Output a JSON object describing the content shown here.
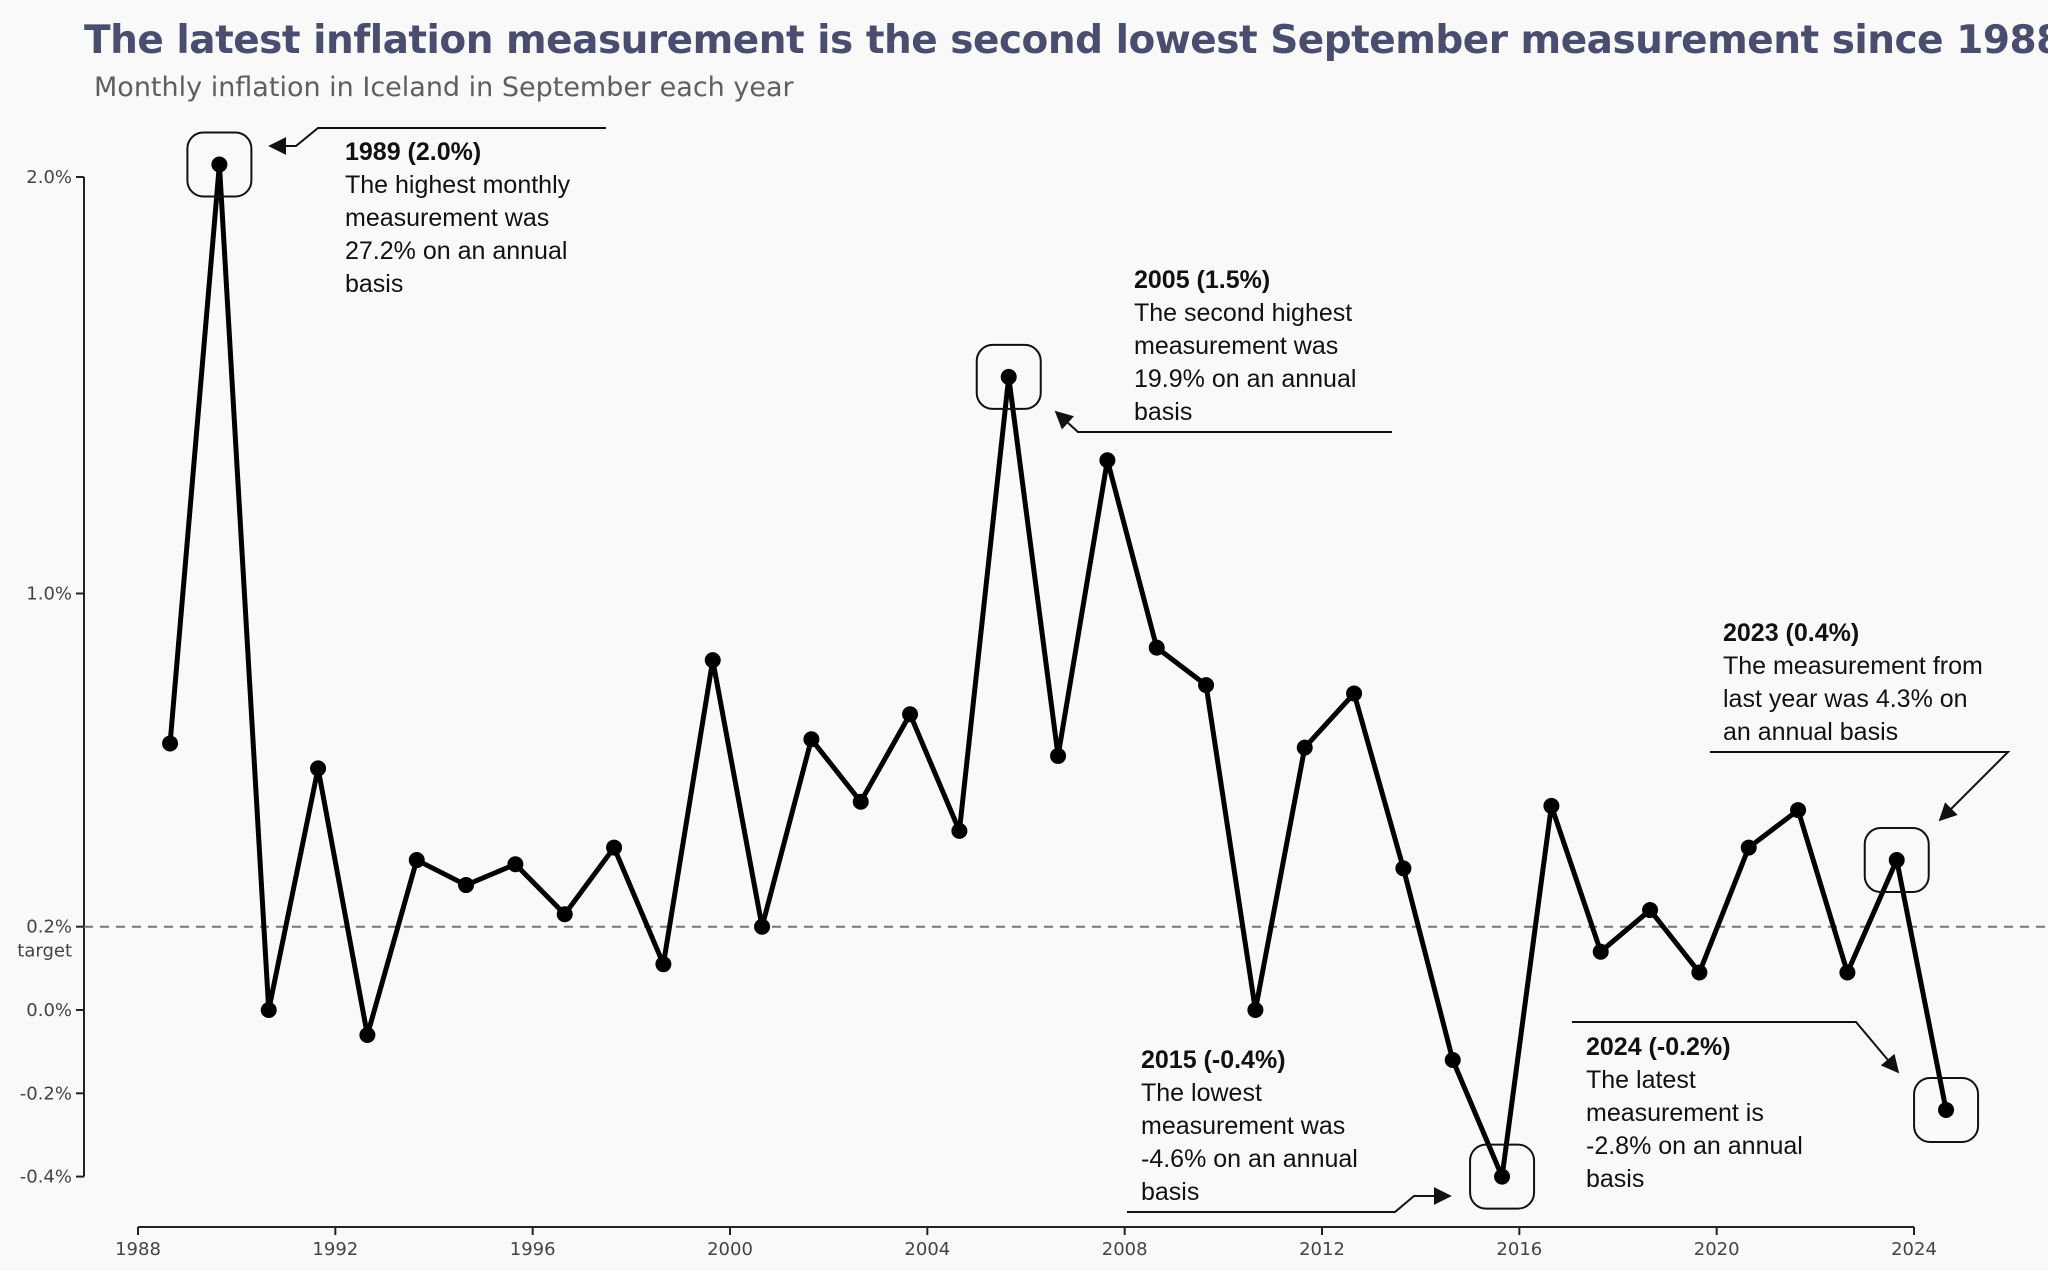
{
  "chart_data": {
    "type": "line",
    "title": "The latest inflation measurement is the second lowest September measurement since 1988",
    "subtitle": "Monthly inflation in Iceland in September each year",
    "xlabel": "",
    "ylabel": "",
    "xlim": [
      1988,
      2024.6
    ],
    "ylim": [
      -0.4,
      2.0
    ],
    "x_ticks": [
      1988,
      1992,
      1996,
      2000,
      2004,
      2008,
      2012,
      2016,
      2020,
      2024
    ],
    "y_ticks": [
      {
        "value": 2.0,
        "label": "2.0%"
      },
      {
        "value": 1.0,
        "label": "1.0%"
      },
      {
        "value": 0.2,
        "label": "0.2%"
      },
      {
        "value": 0.0,
        "label": "0.0%"
      },
      {
        "value": -0.2,
        "label": "-0.2%"
      },
      {
        "value": -0.4,
        "label": "-0.4%"
      }
    ],
    "target": {
      "value": 0.2,
      "label": "target"
    },
    "grid": false,
    "x": [
      1988,
      1989,
      1990,
      1991,
      1992,
      1993,
      1994,
      1995,
      1996,
      1997,
      1998,
      1999,
      2000,
      2001,
      2002,
      2003,
      2004,
      2005,
      2006,
      2007,
      2008,
      2009,
      2010,
      2011,
      2012,
      2013,
      2014,
      2015,
      2016,
      2017,
      2018,
      2019,
      2020,
      2021,
      2022,
      2023,
      2024
    ],
    "values": [
      0.64,
      2.03,
      0.0,
      0.58,
      -0.06,
      0.36,
      0.3,
      0.35,
      0.23,
      0.39,
      0.11,
      0.84,
      0.2,
      0.65,
      0.5,
      0.71,
      0.43,
      1.52,
      0.61,
      1.32,
      0.87,
      0.78,
      0.0,
      0.63,
      0.76,
      0.34,
      -0.12,
      -0.4,
      0.49,
      0.14,
      0.24,
      0.09,
      0.39,
      0.48,
      0.09,
      0.36,
      -0.24
    ],
    "annotations": [
      {
        "year": 1989,
        "value": 2.03,
        "title": "1989 (2.0%)",
        "lines": [
          "The highest monthly",
          "measurement was",
          "27.2% on an annual",
          "basis"
        ]
      },
      {
        "year": 2005,
        "value": 1.52,
        "title": "2005 (1.5%)",
        "lines": [
          "The second highest",
          "measurement was",
          "19.9% on an annual",
          "basis"
        ]
      },
      {
        "year": 2023,
        "value": 0.36,
        "title": "2023 (0.4%)",
        "lines": [
          "The measurement from",
          "last year was 4.3% on",
          "an annual basis"
        ]
      },
      {
        "year": 2015,
        "value": -0.4,
        "title": "2015 (-0.4%)",
        "lines": [
          "The lowest",
          "measurement was",
          "-4.6% on an annual",
          "basis"
        ]
      },
      {
        "year": 2024,
        "value": -0.24,
        "title": "2024 (-0.2%)",
        "lines": [
          "The latest",
          "measurement is",
          "-2.8% on an annual",
          "basis"
        ]
      }
    ]
  },
  "colors": {
    "title": "#4a4e6e",
    "subtitle": "#5f5f5f",
    "line": "#000000",
    "target_line": "#777777",
    "background": "#f9f9f9"
  }
}
